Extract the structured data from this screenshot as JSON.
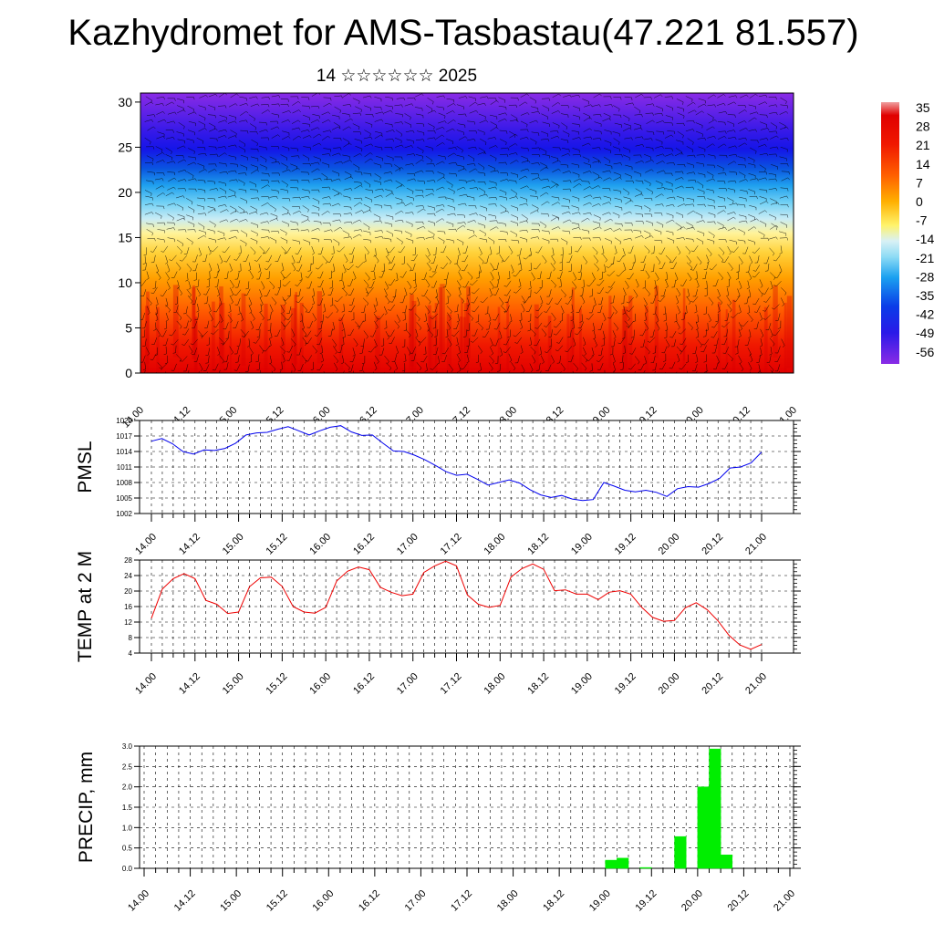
{
  "title": "Kazhydromet for AMS-Tasbastau(47.221 81.557)",
  "subtitle": "14 ☆☆☆☆☆☆ 2025",
  "x_tick_labels": [
    "14.00",
    "14.12",
    "15.00",
    "15.12",
    "16.00",
    "16.12",
    "17.00",
    "17.12",
    "18.00",
    "18.12",
    "19.00",
    "19.12",
    "20.00",
    "20.12",
    "21.00"
  ],
  "colors": {
    "pmsl_line": "#0000ee",
    "temp_line": "#ee0000",
    "precip_bar": "#00ee00",
    "border": "#000000"
  },
  "chart_data": [
    {
      "type": "heatmap",
      "title": "",
      "xlabel": "",
      "ylabel": "",
      "x": [
        "14.00",
        "14.12",
        "15.00",
        "15.12",
        "16.00",
        "16.12",
        "17.00",
        "17.12",
        "18.00",
        "18.12",
        "19.00",
        "19.12",
        "20.00",
        "20.12",
        "21.00"
      ],
      "ylim": [
        0,
        31
      ],
      "y_ticks": [
        "0",
        "5",
        "10",
        "15",
        "20",
        "25",
        "30"
      ],
      "colorbar": {
        "labels": [
          "35",
          "28",
          "21",
          "14",
          "7",
          "0",
          "-7",
          "-14",
          "-21",
          "-28",
          "-35",
          "-42",
          "-49",
          "-56"
        ],
        "range": [
          -60,
          38
        ]
      },
      "overlay": "wind barbs",
      "approx_temperature_profile": [
        {
          "level": 0,
          "value": 28
        },
        {
          "level": 5,
          "value": 22
        },
        {
          "level": 10,
          "value": 12
        },
        {
          "level": 15,
          "value": 0
        },
        {
          "level": 18,
          "value": -18
        },
        {
          "level": 22,
          "value": -45
        },
        {
          "level": 25,
          "value": -55
        },
        {
          "level": 30,
          "value": -60
        }
      ]
    },
    {
      "type": "line",
      "title": "",
      "ylabel": "PMSL",
      "ylim": [
        1002,
        1020
      ],
      "y_ticks": [
        "1002",
        "1005",
        "1008",
        "1011",
        "1014",
        "1017",
        "1020"
      ],
      "series": [
        {
          "values": [
            1016,
            1016.5,
            1015.5,
            1014,
            1013.5,
            1014.3,
            1014.2,
            1014.6,
            1015.6,
            1017.2,
            1017.6,
            1017.7,
            1018.3,
            1018.8,
            1018,
            1017.2,
            1018,
            1018.7,
            1019,
            1017.8,
            1017.1,
            1017.2,
            1015.6,
            1014.1,
            1014,
            1013.3,
            1012.4,
            1011.3,
            1010.1,
            1009.4,
            1009.6,
            1008.6,
            1007.5,
            1008,
            1008.5,
            1007.9,
            1006.6,
            1005.6,
            1005.1,
            1005.5,
            1004.8,
            1004.5,
            1004.7,
            1008,
            1007.3,
            1006.5,
            1006.2,
            1006.5,
            1006.1,
            1005.3,
            1006.8,
            1007.2,
            1007.1,
            1007.8,
            1008.8,
            1010.8,
            1011,
            1011.8,
            1013.9
          ]
        }
      ]
    },
    {
      "type": "line",
      "title": "",
      "ylabel": "TEMP at 2 M",
      "ylim": [
        4,
        28
      ],
      "y_ticks": [
        "4",
        "8",
        "12",
        "16",
        "20",
        "24",
        "28"
      ],
      "series": [
        {
          "values": [
            13,
            20.5,
            23.2,
            24.5,
            23.2,
            17.6,
            16.6,
            14.2,
            14.6,
            21.1,
            23.4,
            23.6,
            21.2,
            16,
            14.6,
            14.3,
            15.8,
            22.6,
            25.1,
            26.2,
            25.5,
            21,
            19.7,
            18.8,
            19.2,
            24.8,
            26.5,
            27.7,
            26.5,
            19,
            16.6,
            15.8,
            16.3,
            23.6,
            25.8,
            27,
            25.6,
            20.1,
            20.3,
            19.2,
            19.2,
            17.8,
            19.7,
            20.1,
            19.2,
            15.8,
            13.2,
            12.2,
            12.4,
            15.7,
            17,
            15.2,
            12.3,
            8.6,
            6.1,
            5,
            6.2
          ]
        }
      ]
    },
    {
      "type": "bar",
      "title": "",
      "ylabel": "PRECIP, mm",
      "ylim": [
        0,
        3.0
      ],
      "y_ticks": [
        "0.0",
        "0.5",
        "1.0",
        "1.5",
        "2.0",
        "2.5",
        "3.0"
      ],
      "bar_unit_hours": 3,
      "bars": [
        {
          "hour": 120,
          "value": 0.2
        },
        {
          "hour": 123,
          "value": 0.25
        },
        {
          "hour": 129,
          "value": 0.02
        },
        {
          "hour": 138,
          "value": 0.78
        },
        {
          "hour": 144,
          "value": 2.0
        },
        {
          "hour": 147,
          "value": 2.93
        },
        {
          "hour": 150,
          "value": 0.33
        }
      ]
    }
  ]
}
